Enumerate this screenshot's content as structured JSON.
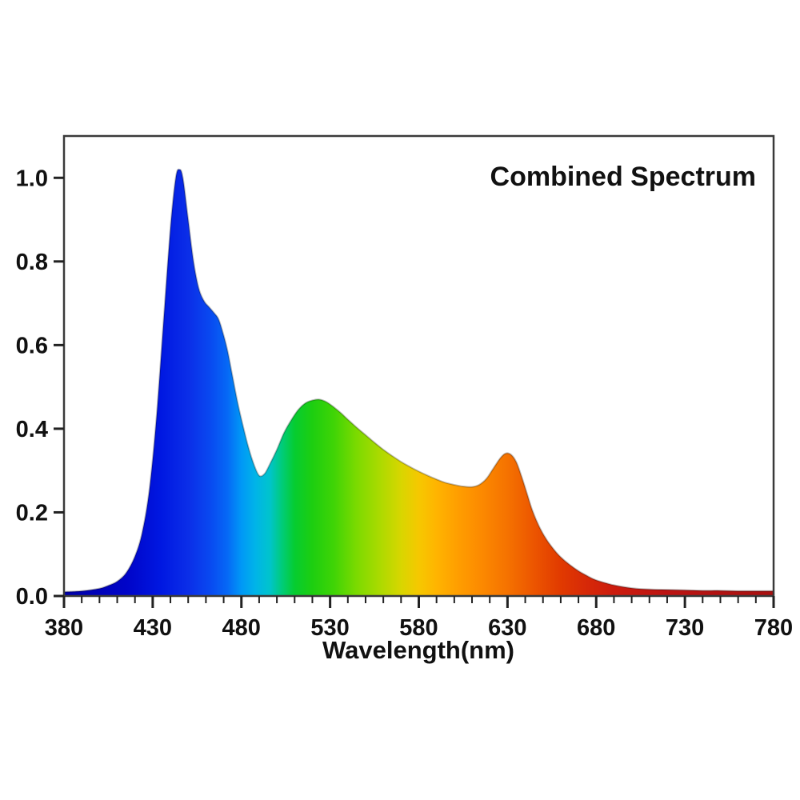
{
  "page": {
    "background": "#ffffff"
  },
  "chart_data": {
    "type": "area",
    "title": "Combined Spectrum",
    "xlabel": "Wavelength(nm)",
    "ylabel": "",
    "xlim": [
      380,
      780
    ],
    "ylim": [
      0,
      1.1
    ],
    "grid": false,
    "legend": "none",
    "axis_color": "#3a3a3a",
    "tick_color": "#222222",
    "text_color": "#111111",
    "outline_color": "rgba(0,0,0,0.25)",
    "x_major_ticks": [
      380,
      430,
      480,
      530,
      580,
      630,
      680,
      730,
      780
    ],
    "x_minor_step": 10,
    "y_tick_values": [
      0,
      0.2,
      0.4,
      0.6,
      0.8,
      1.0
    ],
    "y_tick_labels": [
      "0.0",
      "0.2",
      "0.4",
      "0.6",
      "0.8",
      "1.0"
    ],
    "series": [
      {
        "name": "Combined Spectrum",
        "x": [
          380,
          390,
          400,
          405,
          410,
          415,
          420,
          424,
          428,
          432,
          436,
          440,
          443,
          445,
          447,
          450,
          453,
          456,
          459,
          462,
          465,
          467,
          469,
          472,
          475,
          478,
          481,
          484,
          487,
          490,
          493,
          496,
          500,
          504,
          508,
          512,
          516,
          520,
          524,
          528,
          532,
          536,
          540,
          545,
          550,
          555,
          560,
          565,
          570,
          575,
          580,
          585,
          590,
          595,
          600,
          605,
          610,
          614,
          618,
          622,
          626,
          629,
          632,
          635,
          638,
          641,
          644,
          648,
          652,
          656,
          660,
          665,
          670,
          675,
          680,
          690,
          700,
          710,
          720,
          730,
          740,
          750,
          760,
          770,
          780
        ],
        "y": [
          0.01,
          0.012,
          0.018,
          0.025,
          0.035,
          0.055,
          0.095,
          0.15,
          0.25,
          0.42,
          0.65,
          0.88,
          1.0,
          1.02,
          1.0,
          0.9,
          0.8,
          0.735,
          0.705,
          0.69,
          0.675,
          0.663,
          0.638,
          0.59,
          0.525,
          0.46,
          0.405,
          0.355,
          0.315,
          0.288,
          0.292,
          0.315,
          0.35,
          0.39,
          0.42,
          0.445,
          0.461,
          0.468,
          0.47,
          0.464,
          0.452,
          0.438,
          0.422,
          0.403,
          0.385,
          0.367,
          0.35,
          0.335,
          0.321,
          0.309,
          0.298,
          0.288,
          0.279,
          0.271,
          0.266,
          0.262,
          0.261,
          0.266,
          0.28,
          0.305,
          0.33,
          0.341,
          0.338,
          0.32,
          0.285,
          0.245,
          0.205,
          0.165,
          0.135,
          0.112,
          0.093,
          0.075,
          0.06,
          0.048,
          0.038,
          0.026,
          0.019,
          0.016,
          0.015,
          0.014,
          0.013,
          0.013,
          0.012,
          0.012,
          0.012
        ]
      }
    ],
    "features": {
      "blue_peak": {
        "wavelength_nm": 445,
        "intensity": 1.02
      },
      "blue_shoulder": {
        "wavelength_nm": 465,
        "intensity": 0.68
      },
      "dip": {
        "wavelength_nm": 490,
        "intensity": 0.29
      },
      "green_peak": {
        "wavelength_nm": 524,
        "intensity": 0.47
      },
      "local_min": {
        "wavelength_nm": 610,
        "intensity": 0.26
      },
      "red_peak": {
        "wavelength_nm": 630,
        "intensity": 0.34
      }
    },
    "spectrum_gradient_stops": [
      {
        "wl": 380,
        "color": "#0000A8"
      },
      {
        "wl": 415,
        "color": "#0004C8"
      },
      {
        "wl": 435,
        "color": "#0018E2"
      },
      {
        "wl": 450,
        "color": "#0B2EE8"
      },
      {
        "wl": 462,
        "color": "#0948F0"
      },
      {
        "wl": 472,
        "color": "#0668F6"
      },
      {
        "wl": 480,
        "color": "#0098F6"
      },
      {
        "wl": 488,
        "color": "#00B4E8"
      },
      {
        "wl": 496,
        "color": "#00C4CC"
      },
      {
        "wl": 503,
        "color": "#00CC78"
      },
      {
        "wl": 510,
        "color": "#06CC30"
      },
      {
        "wl": 520,
        "color": "#1DCE10"
      },
      {
        "wl": 532,
        "color": "#3FD406"
      },
      {
        "wl": 545,
        "color": "#7CDA00"
      },
      {
        "wl": 558,
        "color": "#ABDA00"
      },
      {
        "wl": 570,
        "color": "#D8D600"
      },
      {
        "wl": 580,
        "color": "#F6C800"
      },
      {
        "wl": 590,
        "color": "#FFB400"
      },
      {
        "wl": 602,
        "color": "#FF9E00"
      },
      {
        "wl": 615,
        "color": "#FC8A00"
      },
      {
        "wl": 630,
        "color": "#F57200"
      },
      {
        "wl": 645,
        "color": "#EC5500"
      },
      {
        "wl": 660,
        "color": "#E13A00"
      },
      {
        "wl": 675,
        "color": "#D62808"
      },
      {
        "wl": 690,
        "color": "#CC1C0E"
      },
      {
        "wl": 720,
        "color": "#BC1412"
      },
      {
        "wl": 780,
        "color": "#A81010"
      }
    ]
  }
}
